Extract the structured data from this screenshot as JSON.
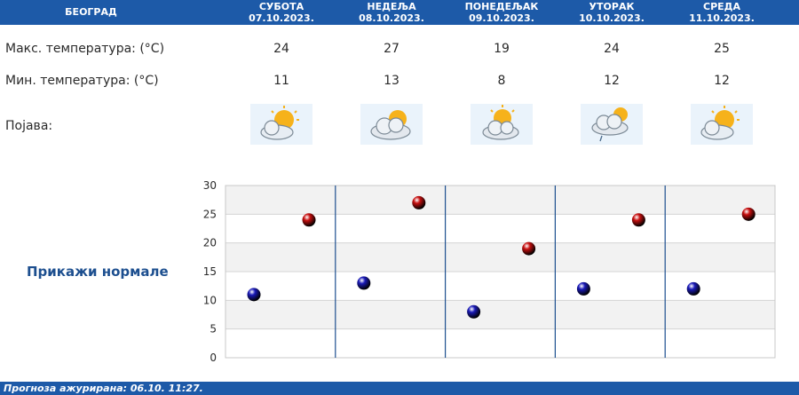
{
  "header": {
    "city": "БЕОГРАД",
    "days": [
      {
        "name": "СУБОТА",
        "date": "07.10.2023."
      },
      {
        "name": "НЕДЕЉА",
        "date": "08.10.2023."
      },
      {
        "name": "ПОНЕДЕЉАК",
        "date": "09.10.2023."
      },
      {
        "name": "УТОРАК",
        "date": "10.10.2023."
      },
      {
        "name": "СРЕДА",
        "date": "11.10.2023."
      }
    ]
  },
  "rows": {
    "max_label": "Макс. температура: (°C)",
    "min_label": "Мин. температура: (°C)",
    "phenomenon_label": "Појава:",
    "max_values": [
      "24",
      "27",
      "19",
      "24",
      "25"
    ],
    "min_values": [
      "11",
      "13",
      "8",
      "12",
      "12"
    ]
  },
  "icons": [
    "sun-cloud-icon",
    "cloud-sun-icon",
    "sun-cloud-icon",
    "cloud-rain-sun-icon",
    "sun-cloud-icon"
  ],
  "normals_link": "Прикажи нормале",
  "chart_data": {
    "type": "scatter",
    "categories": [
      "07.10.2023.",
      "08.10.2023.",
      "09.10.2023.",
      "10.10.2023.",
      "11.10.2023."
    ],
    "series": [
      {
        "values": [
          11,
          13,
          8,
          12,
          12
        ],
        "color": "#1a1ab8"
      },
      {
        "values": [
          24,
          27,
          19,
          24,
          25
        ],
        "color": "#c81010"
      }
    ],
    "ylim": [
      0,
      30
    ],
    "yticks": [
      "0",
      "5",
      "10",
      "15",
      "20",
      "25",
      "30"
    ],
    "grid": true
  },
  "footer": {
    "text": "Прогноза ажурирана:  06.10.  11:27."
  },
  "colors": {
    "header_bg": "#1d5aa8",
    "min_dot": "#1a1ab8",
    "max_dot": "#c81010"
  }
}
